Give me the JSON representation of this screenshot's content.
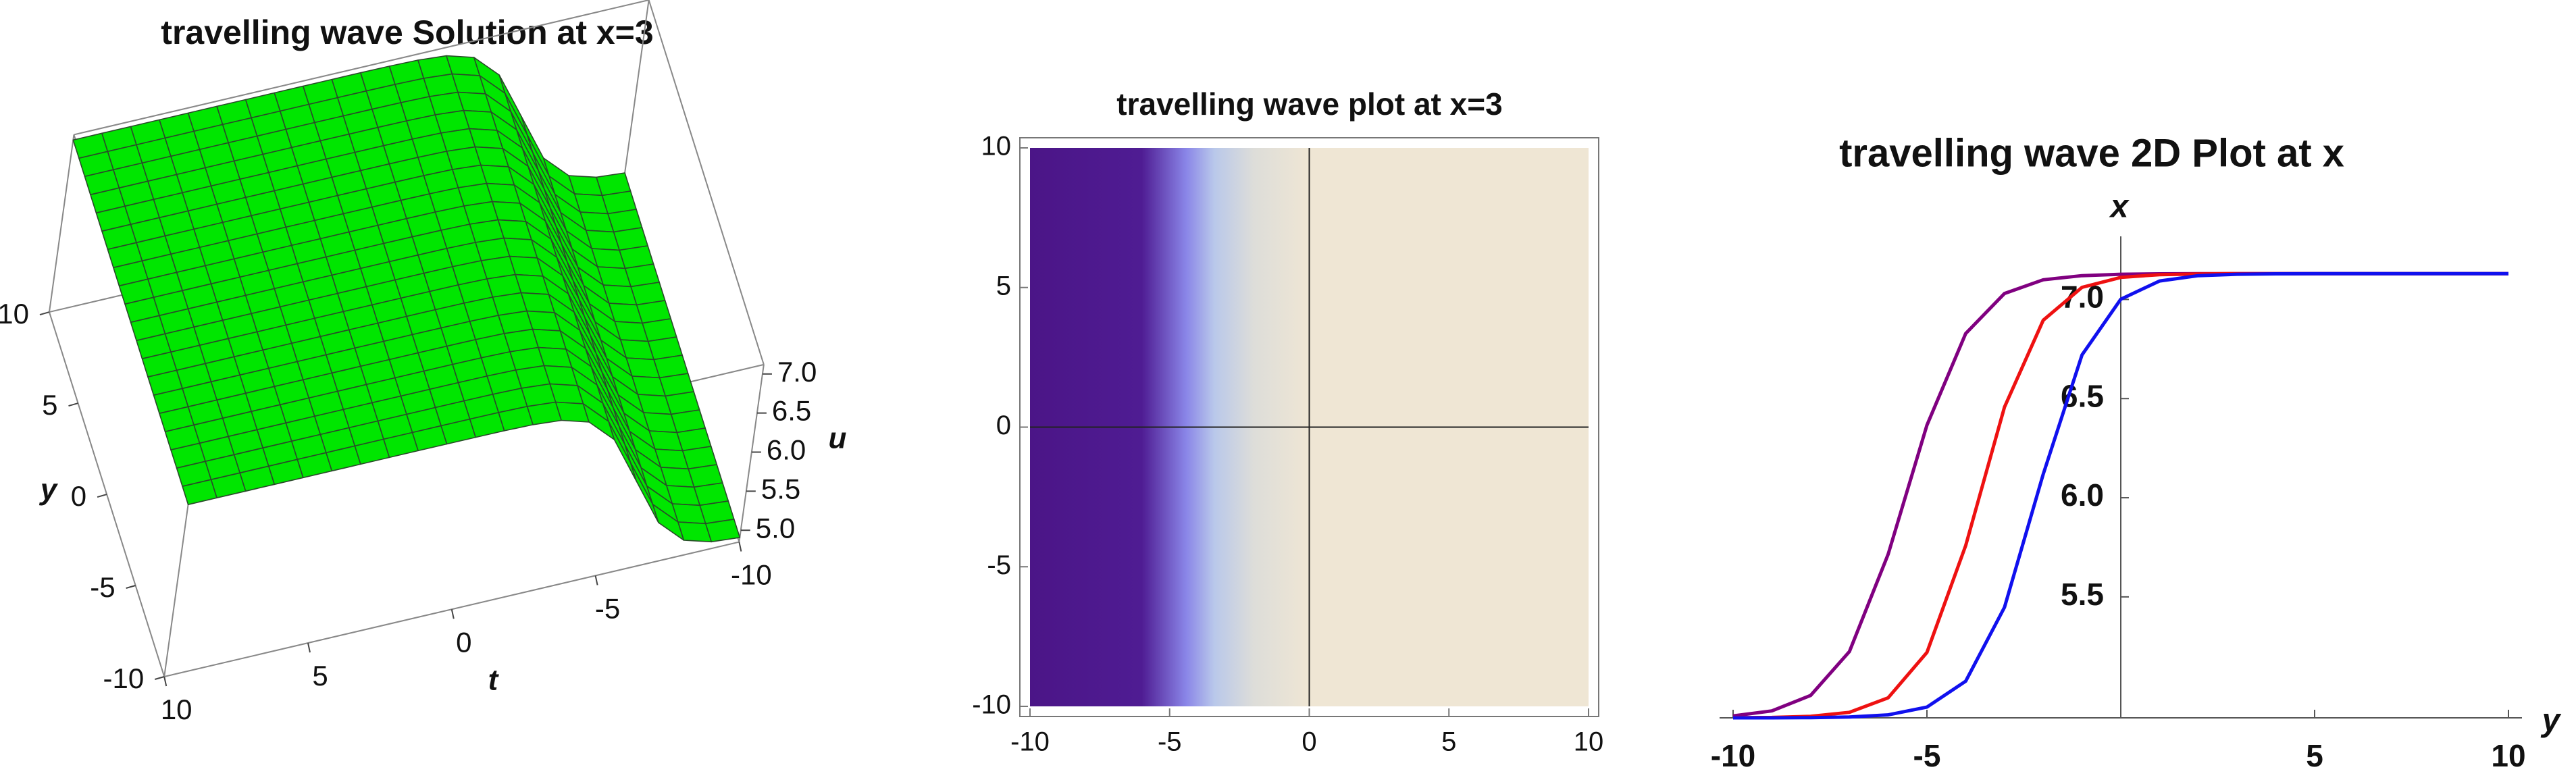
{
  "chart_data": [
    {
      "type": "surface3d",
      "title": "travelling wave Solution at x=3",
      "xlabel": "t",
      "ylabel": "y",
      "zlabel": "u",
      "xlim": [
        -10,
        10
      ],
      "xticks": [
        10,
        5,
        0,
        -5,
        -10
      ],
      "ylim": [
        -10,
        10
      ],
      "yticks": [
        -10,
        -5,
        0,
        5,
        10
      ],
      "zlim": [
        4.85,
        7.12
      ],
      "zticks": [
        {
          "value": 5,
          "label": "5.0"
        },
        5.5,
        {
          "value": 6,
          "label": "6.0"
        },
        6.5,
        {
          "value": 7,
          "label": "7.0"
        }
      ],
      "color": "#00e600"
    },
    {
      "type": "density",
      "title": "travelling wave plot at x=3",
      "xlim": [
        -10,
        10
      ],
      "xticks": [
        -10,
        -5,
        0,
        5,
        10
      ],
      "ylim": [
        -10,
        10
      ],
      "yticks": [
        -10,
        -5,
        0,
        5,
        10
      ],
      "colormap": [
        "#4b1587",
        "#4f1c93",
        "#8a86e8",
        "#b9c8ea",
        "#ddddd9",
        "#efe6d4",
        "#efe6d4"
      ]
    },
    {
      "type": "line",
      "title": "travelling wave 2D Plot at x",
      "xlabel": "y",
      "ylabel": "x",
      "x": [
        -10,
        -9,
        -8,
        -7,
        -6,
        -5,
        -4,
        -3,
        -2,
        -1,
        0,
        1,
        2,
        3,
        4,
        5,
        6,
        7,
        8,
        9,
        10
      ],
      "series": [
        {
          "color": "#800080",
          "values": [
            4.9,
            4.925,
            5.003,
            5.224,
            5.715,
            6.366,
            6.828,
            7.03,
            7.099,
            7.12,
            7.127,
            7.129,
            7.13,
            7.13,
            7.13,
            7.13,
            7.13,
            7.13,
            7.13,
            7.13,
            7.13
          ]
        },
        {
          "color": "#ee1111",
          "values": [
            4.891,
            4.892,
            4.898,
            4.918,
            4.991,
            5.22,
            5.759,
            6.457,
            6.895,
            7.061,
            7.111,
            7.125,
            7.128,
            7.13,
            7.13,
            7.13,
            7.13,
            7.13,
            7.13,
            7.13,
            7.13
          ]
        },
        {
          "color": "#1010ee",
          "values": [
            4.89,
            4.89,
            4.891,
            4.894,
            4.905,
            4.944,
            5.075,
            5.447,
            6.119,
            6.72,
            7.001,
            7.093,
            7.12,
            7.127,
            7.129,
            7.13,
            7.13,
            7.13,
            7.13,
            7.13,
            7.13
          ]
        }
      ],
      "xlim": [
        -10,
        10
      ],
      "xticks": [
        -10,
        -5,
        5,
        10
      ],
      "ylim": [
        4.89,
        7.25
      ],
      "yticks": [
        5.5,
        {
          "value": 6,
          "label": "6.0"
        },
        6.5,
        {
          "value": 7,
          "label": "7.0"
        }
      ]
    }
  ]
}
